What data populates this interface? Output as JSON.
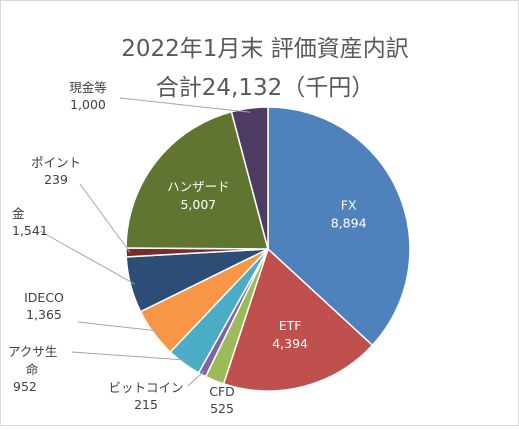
{
  "chart_data": {
    "type": "pie",
    "title_line1": "2022年1月末 評価資産内訳",
    "title_line2": "合計24,132（千円）",
    "unit": "千円",
    "slices": [
      {
        "name": "FX",
        "value": 8894,
        "value_text": "8,894",
        "color": "#4f81bd"
      },
      {
        "name": "ETF",
        "value": 4394,
        "value_text": "4,394",
        "color": "#c0504d"
      },
      {
        "name": "CFD",
        "value": 525,
        "value_text": "525",
        "color": "#9bbb59"
      },
      {
        "name": "ビットコイン",
        "value": 215,
        "value_text": "215",
        "color": "#8064a2"
      },
      {
        "name": "アクサ生命",
        "value": 952,
        "value_text": "952",
        "color": "#4bacc6"
      },
      {
        "name": "IDECO",
        "value": 1365,
        "value_text": "1,365",
        "color": "#f79646"
      },
      {
        "name": "金",
        "value": 1541,
        "value_text": "1,541",
        "color": "#2c4d75"
      },
      {
        "name": "ポイント",
        "value": 239,
        "value_text": "239",
        "color": "#772c2a"
      },
      {
        "name": "ハンザード",
        "value": 5007,
        "value_text": "5,007",
        "color": "#5f7530"
      },
      {
        "name": "現金等",
        "value": 1000,
        "value_text": "1,000",
        "color": "#4d3b62"
      }
    ]
  }
}
